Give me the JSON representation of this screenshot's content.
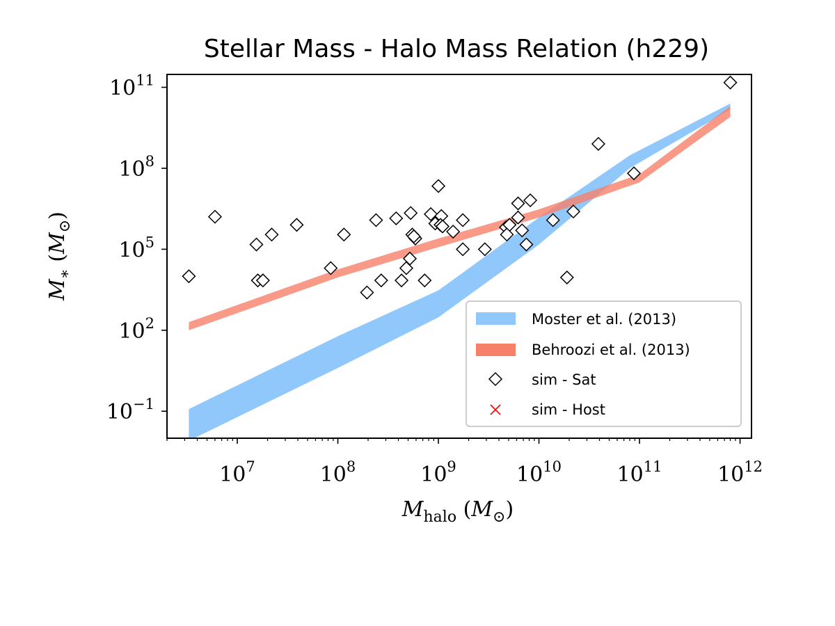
{
  "chart_data": {
    "type": "scatter",
    "title": "Stellar Mass - Halo Mass Relation (h229)",
    "xlabel": "M_halo (M_⊙)",
    "ylabel": "M_* (M_⊙)",
    "xscale": "log",
    "yscale": "log",
    "xlim": [
      2000000.0,
      1300000000000.0
    ],
    "ylim": [
      0.01,
      300000000000.0
    ],
    "x_ticks": [
      {
        "value": 10000000.0,
        "base": "10",
        "exp": "7"
      },
      {
        "value": 100000000.0,
        "base": "10",
        "exp": "8"
      },
      {
        "value": 1000000000.0,
        "base": "10",
        "exp": "9"
      },
      {
        "value": 10000000000.0,
        "base": "10",
        "exp": "10"
      },
      {
        "value": 100000000000.0,
        "base": "10",
        "exp": "11"
      },
      {
        "value": 1000000000000.0,
        "base": "10",
        "exp": "12"
      }
    ],
    "y_ticks": [
      {
        "value": 0.1,
        "base": "10",
        "exp": "−1"
      },
      {
        "value": 100,
        "base": "10",
        "exp": "2"
      },
      {
        "value": 100000.0,
        "base": "10",
        "exp": "5"
      },
      {
        "value": 100000000.0,
        "base": "10",
        "exp": "8"
      },
      {
        "value": 100000000000.0,
        "base": "10",
        "exp": "11"
      }
    ],
    "grid": false,
    "legend_position": "lower-right",
    "bands": [
      {
        "name": "Moster et al. (2013)",
        "color": "#90c8fb",
        "x": [
          3300000.0,
          100000000.0,
          1000000000.0,
          10000000000.0,
          80000000000.0,
          800000000000.0
        ],
        "upper": [
          0.12,
          60,
          3000,
          1500000.0,
          300000000.0,
          25000000000.0
        ],
        "lower": [
          0.008,
          4,
          300,
          150000.0,
          100000000.0,
          15000000000.0
        ]
      },
      {
        "name": "Behroozi et al. (2013)",
        "color": "#f7806a",
        "x": [
          3300000.0,
          100000000.0,
          1000000000.0,
          10000000000.0,
          100000000000.0,
          800000000000.0
        ],
        "upper": [
          200,
          18000,
          250000.0,
          3000000.0,
          60000000.0,
          20000000000.0
        ],
        "lower": [
          100,
          9000,
          120000.0,
          1500000.0,
          30000000.0,
          8000000000.0
        ]
      }
    ],
    "series": [
      {
        "name": "sim - Sat",
        "marker": "diamond",
        "points": [
          [
            3300000.0,
            10000
          ],
          [
            6000000.0,
            1600000.0
          ],
          [
            15500000.0,
            150000.0
          ],
          [
            16000000.0,
            7000
          ],
          [
            18000000.0,
            7000
          ],
          [
            22000000.0,
            350000.0
          ],
          [
            39000000.0,
            800000.0
          ],
          [
            85000000.0,
            20000
          ],
          [
            115000000.0,
            350000.0
          ],
          [
            195000000.0,
            2500
          ],
          [
            240000000.0,
            1200000.0
          ],
          [
            270000000.0,
            7000
          ],
          [
            380000000.0,
            1400000.0
          ],
          [
            430000000.0,
            7000
          ],
          [
            480000000.0,
            20000
          ],
          [
            520000000.0,
            45000
          ],
          [
            530000000.0,
            2200000.0
          ],
          [
            550000000.0,
            350000.0
          ],
          [
            590000000.0,
            250000.0
          ],
          [
            570000000.0,
            300000.0
          ],
          [
            730000000.0,
            7000
          ],
          [
            840000000.0,
            2000000.0
          ],
          [
            930000000.0,
            900000.0
          ],
          [
            1000000000.0,
            22000000.0
          ],
          [
            1070000000.0,
            1700000.0
          ],
          [
            1050000000.0,
            800000.0
          ],
          [
            1100000000.0,
            700000.0
          ],
          [
            1400000000.0,
            450000.0
          ],
          [
            1750000000.0,
            1200000.0
          ],
          [
            1750000000.0,
            100000.0
          ],
          [
            2900000000.0,
            100000.0
          ],
          [
            4700000000.0,
            650000.0
          ],
          [
            5100000000.0,
            800000.0
          ],
          [
            4800000000.0,
            350000.0
          ],
          [
            6200000000.0,
            5000000.0
          ],
          [
            6200000000.0,
            1500000.0
          ],
          [
            6800000000.0,
            500000.0
          ],
          [
            7500000000.0,
            150000.0
          ],
          [
            8200000000.0,
            6500000.0
          ],
          [
            13800000000.0,
            1200000.0
          ],
          [
            19000000000.0,
            9000
          ],
          [
            22000000000.0,
            2500000.0
          ],
          [
            39000000000.0,
            800000000.0
          ],
          [
            88000000000.0,
            65000000.0
          ],
          [
            800000000000.0,
            150000000000.0
          ]
        ]
      },
      {
        "name": "sim - Host",
        "marker": "x",
        "color": "#ff0000",
        "points": []
      }
    ]
  }
}
